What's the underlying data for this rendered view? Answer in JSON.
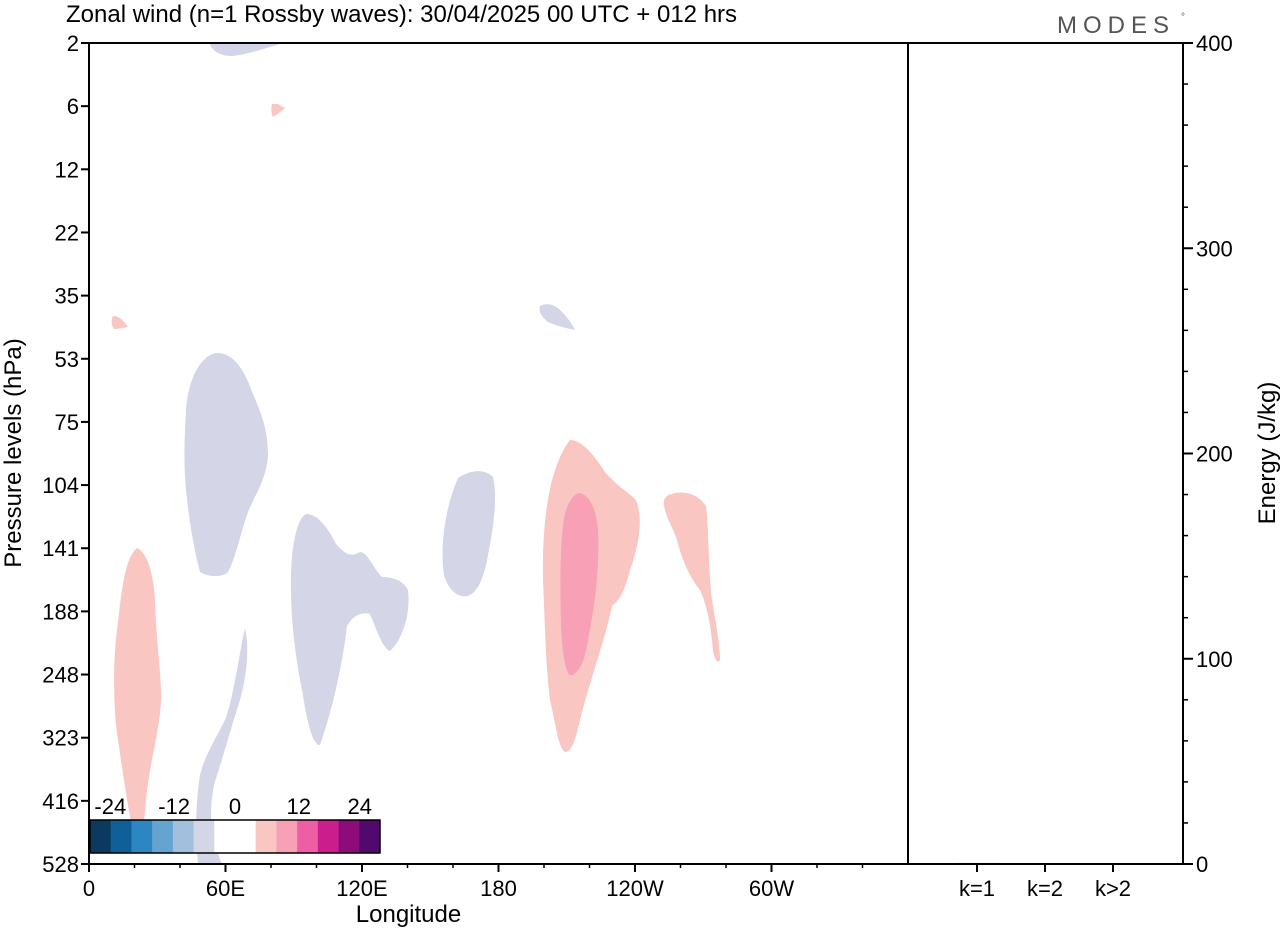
{
  "title": "Zonal wind (n=1 Rossby waves):  30/04/2025  00 UTC  + 012 hrs",
  "brand": {
    "text": "MODES",
    "mark": "°"
  },
  "colors": {
    "neg_light": "#d4d6e8",
    "pos_light": "#f9c6c2",
    "pos_mid": "#f7a0b6",
    "frame": "#000000"
  },
  "colorbar": {
    "labels": [
      "-24",
      "-12",
      "0",
      "12",
      "24"
    ],
    "colors": [
      "#0b3a5e",
      "#0f5f98",
      "#2b86c2",
      "#63a4d1",
      "#a3bfde",
      "#d4d6e8",
      "#ffffff",
      "#ffffff",
      "#f9c6c2",
      "#f7a0b6",
      "#ee5ea4",
      "#cc1d8c",
      "#8c0d7a",
      "#52096e"
    ]
  },
  "chart_data": [
    {
      "type": "heatmap",
      "title": "Zonal wind (n=1 Rossby waves):  30/04/2025  00 UTC  + 012 hrs",
      "xlabel": "Longitude",
      "ylabel": "Pressure levels (hPa)",
      "x_ticks": [
        "0",
        "60E",
        "120E",
        "180",
        "120W",
        "60W"
      ],
      "y_ticks": [
        "2",
        "6",
        "12",
        "22",
        "35",
        "53",
        "75",
        "104",
        "141",
        "188",
        "248",
        "323",
        "416",
        "528"
      ],
      "y_scale": "log",
      "contour_levels": [
        -24,
        -12,
        0,
        12,
        24
      ],
      "features": [
        {
          "sign": "negative",
          "level": -6,
          "lon_range": [
            55,
            80
          ],
          "p_range": [
            2,
            3
          ]
        },
        {
          "sign": "positive",
          "level": 6,
          "lon_range": [
            80,
            85
          ],
          "p_range": [
            6,
            7
          ]
        },
        {
          "sign": "positive",
          "level": 6,
          "lon_range": [
            10,
            17
          ],
          "p_range": [
            38,
            42
          ]
        },
        {
          "sign": "negative",
          "level": -6,
          "lon_range": [
            197,
            210
          ],
          "p_range": [
            36,
            43
          ]
        },
        {
          "sign": "negative",
          "level": -6,
          "lon_range": [
            42,
            78
          ],
          "p_range": [
            50,
            150
          ]
        },
        {
          "sign": "negative",
          "level": -6,
          "lon_range": [
            50,
            70
          ],
          "p_range": [
            190,
            528
          ]
        },
        {
          "sign": "negative",
          "level": -6,
          "lon_range": [
            88,
            140
          ],
          "p_range": [
            120,
            320
          ]
        },
        {
          "sign": "negative",
          "level": -6,
          "lon_range": [
            155,
            178
          ],
          "p_range": [
            100,
            190
          ]
        },
        {
          "sign": "positive",
          "level": 6,
          "lon_range": [
            12,
            32
          ],
          "p_range": [
            136,
            450
          ]
        },
        {
          "sign": "positive",
          "level": 6,
          "lon_range": [
            200,
            242
          ],
          "p_range": [
            80,
            360
          ]
        },
        {
          "sign": "positive",
          "level": 12,
          "lon_range": [
            208,
            222
          ],
          "p_range": [
            107,
            250
          ]
        },
        {
          "sign": "positive",
          "level": 6,
          "lon_range": [
            252,
            277
          ],
          "p_range": [
            108,
            255
          ]
        }
      ]
    },
    {
      "type": "bar",
      "categories": [
        "k=1",
        "k=2",
        "k>2"
      ],
      "values": [
        0.5,
        0.3,
        0.4
      ],
      "ylabel": "Energy (J/kg)",
      "ylim": [
        0,
        400
      ],
      "y_ticks": [
        "0",
        "100",
        "200",
        "300",
        "400"
      ]
    }
  ]
}
